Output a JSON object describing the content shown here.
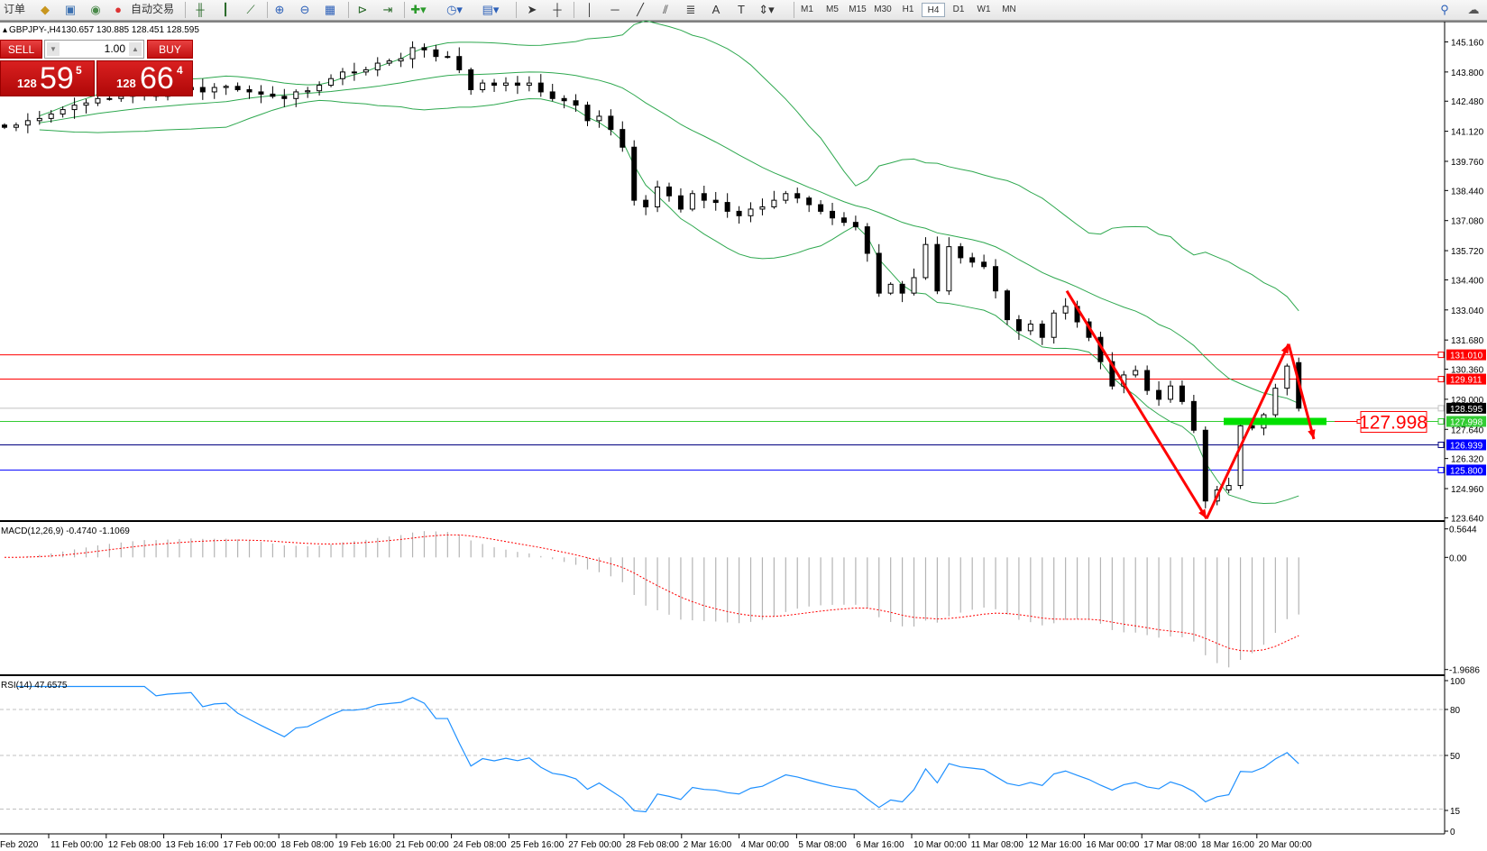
{
  "toolbar": {
    "order_label": "订单",
    "autotrade_label": "自动交易",
    "timeframes": [
      "M1",
      "M5",
      "M15",
      "M30",
      "H1",
      "H4",
      "D1",
      "W1",
      "MN"
    ],
    "active_timeframe": "H4"
  },
  "chart": {
    "symbol_label": "GBPJPY-,H4",
    "ohlc_label": "130.657 130.885 128.451 128.595"
  },
  "trade_panel": {
    "sell_label": "SELL",
    "buy_label": "BUY",
    "lot": "1.00",
    "sell_price": {
      "prefix": "128",
      "big": "59",
      "sup": "5"
    },
    "buy_price": {
      "prefix": "128",
      "big": "66",
      "sup": "4"
    }
  },
  "price_axis": {
    "ticks": [
      "145.160",
      "143.800",
      "142.480",
      "141.120",
      "139.760",
      "138.440",
      "137.080",
      "135.720",
      "134.400",
      "133.040",
      "131.680",
      "130.360",
      "129.000",
      "127.640",
      "126.320",
      "124.960",
      "123.640"
    ],
    "levels": [
      {
        "value": "131.010",
        "color": "#ff0000",
        "text_color": "#ffffff"
      },
      {
        "value": "129.911",
        "color": "#ff0000",
        "text_color": "#ffffff"
      },
      {
        "value": "128.595",
        "color": "#000000",
        "text_color": "#ffffff",
        "line_color": "#c0c0c0"
      },
      {
        "value": "127.998",
        "color": "#33cc33",
        "text_color": "#ffffff"
      },
      {
        "value": "126.939",
        "color": "#0000ff",
        "text_color": "#ffffff",
        "line_color": "#000080"
      },
      {
        "value": "125.800",
        "color": "#0000ff",
        "text_color": "#ffffff"
      }
    ],
    "annotation": "127.998"
  },
  "macd": {
    "label": "MACD(12,26,9) -0.4740 -1.1069",
    "axis": [
      "0.5644",
      "0.00",
      "-1.9686"
    ]
  },
  "rsi": {
    "label": "RSI(14) 47.6575",
    "axis": [
      "100",
      "80",
      "50",
      "15",
      "0"
    ]
  },
  "time_axis": [
    "Feb 2020",
    "11 Feb 00:00",
    "12 Feb 08:00",
    "13 Feb 16:00",
    "17 Feb 00:00",
    "18 Feb 08:00",
    "19 Feb 16:00",
    "21 Feb 00:00",
    "24 Feb 08:00",
    "25 Feb 16:00",
    "27 Feb 00:00",
    "28 Feb 08:00",
    "2 Mar 16:00",
    "4 Mar 00:00",
    "5 Mar 08:00",
    "6 Mar 16:00",
    "10 Mar 00:00",
    "11 Mar 08:00",
    "12 Mar 16:00",
    "16 Mar 00:00",
    "17 Mar 08:00",
    "18 Mar 16:00",
    "20 Mar 00:00"
  ],
  "colors": {
    "bollinger": "#2ea84f",
    "macd_hist": "#b4b4b4",
    "macd_signal": "#ff0000",
    "rsi": "#1e90ff",
    "arrows": "#ff0000",
    "support_zone": "#00e000"
  },
  "chart_data": {
    "type": "candlestick",
    "symbol": "GBPJPY-",
    "timeframe": "H4",
    "indicators": [
      "Bollinger Bands",
      "MACD(12,26,9)",
      "RSI(14)"
    ],
    "last_bar": {
      "open": 130.657,
      "high": 130.885,
      "low": 128.451,
      "close": 128.595
    },
    "approx_closes": [
      141.3,
      141.4,
      141.6,
      141.7,
      141.9,
      142.1,
      142.3,
      142.4,
      142.6,
      142.6,
      142.7,
      142.8,
      142.9,
      142.7,
      142.9,
      143.0,
      143.1,
      142.9,
      143.1,
      143.15,
      143.0,
      142.9,
      142.8,
      142.7,
      142.6,
      142.9,
      142.95,
      143.2,
      143.5,
      143.8,
      143.8,
      143.9,
      144.2,
      144.3,
      144.4,
      144.9,
      144.8,
      144.5,
      144.5,
      143.9,
      143.0,
      143.3,
      143.2,
      143.3,
      143.2,
      143.3,
      142.9,
      142.6,
      142.5,
      142.3,
      141.6,
      141.8,
      141.2,
      140.4,
      138.0,
      137.7,
      138.6,
      138.2,
      137.6,
      138.3,
      138.0,
      137.9,
      137.5,
      137.3,
      137.6,
      137.7,
      138.0,
      138.3,
      138.1,
      137.8,
      137.5,
      137.2,
      137.0,
      136.8,
      135.6,
      133.8,
      134.2,
      133.8,
      134.5,
      136.0,
      133.9,
      135.9,
      135.4,
      135.2,
      135.0,
      133.9,
      132.6,
      132.1,
      132.4,
      131.8,
      132.9,
      133.2,
      132.5,
      131.8,
      130.7,
      129.6,
      130.1,
      130.3,
      129.4,
      129.0,
      129.6,
      128.9,
      127.6,
      124.4,
      124.9,
      125.1,
      127.8,
      127.7,
      128.3,
      129.5,
      130.5,
      128.595
    ],
    "y_range": [
      123.64,
      145.16
    ],
    "trend_arrows_prices": [
      133.9,
      123.6,
      131.5,
      127.2
    ]
  }
}
